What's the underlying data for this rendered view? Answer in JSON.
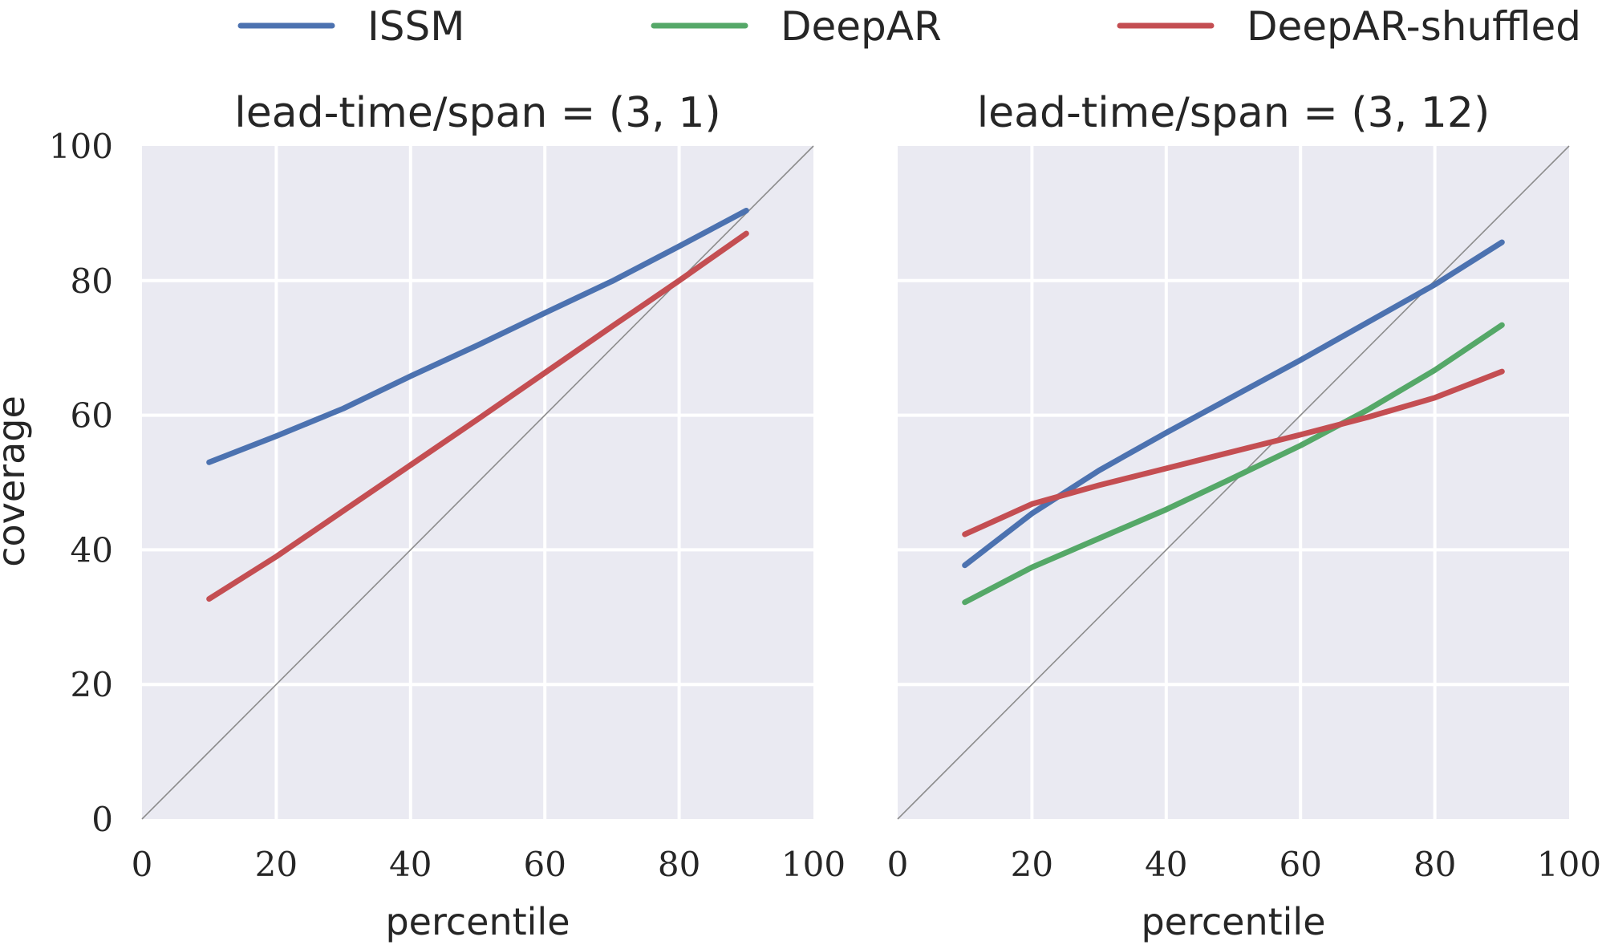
{
  "chart_data": {
    "type": "line",
    "legend": {
      "placement": "top",
      "entries": [
        {
          "label": "ISSM",
          "color": "#4c72b0"
        },
        {
          "label": "DeepAR",
          "color": "#55a868"
        },
        {
          "label": "DeepAR-shuffled",
          "color": "#c44e52"
        }
      ]
    },
    "ylabel": "coverage",
    "grid": true,
    "background_color": "#eaeaf2",
    "reference_line": "y = x",
    "panels": [
      {
        "title": "lead-time/span = (3, 1)",
        "xlabel": "percentile",
        "xlim": [
          0,
          100
        ],
        "ylim": [
          0,
          100
        ],
        "xticks": [
          "0",
          "20",
          "40",
          "60",
          "80",
          "100"
        ],
        "yticks": [
          "0",
          "20",
          "40",
          "60",
          "80",
          "100"
        ],
        "x": [
          10,
          20,
          30,
          40,
          50,
          60,
          70,
          80,
          90
        ],
        "series": [
          {
            "name": "ISSM",
            "values": [
              53,
              56.9,
              61,
              65.8,
              70.4,
              75.2,
              79.9,
              85.1,
              90.4
            ]
          },
          {
            "name": "DeepAR-shuffled",
            "values": [
              32.7,
              39,
              45.8,
              52.6,
              59.4,
              66.3,
              73.2,
              80,
              87
            ]
          }
        ]
      },
      {
        "title": "lead-time/span = (3, 12)",
        "xlabel": "percentile",
        "xlim": [
          0,
          100
        ],
        "ylim": [
          0,
          100
        ],
        "xticks": [
          "0",
          "20",
          "40",
          "60",
          "80",
          "100"
        ],
        "yticks": [],
        "x": [
          10,
          20,
          30,
          40,
          50,
          60,
          70,
          80,
          90
        ],
        "series": [
          {
            "name": "ISSM",
            "values": [
              37.7,
              45.4,
              51.8,
              57.4,
              62.8,
              68.2,
              73.8,
              79.4,
              85.7
            ]
          },
          {
            "name": "DeepAR",
            "values": [
              32.2,
              37.4,
              41.7,
              46,
              50.7,
              55.5,
              60.8,
              66.7,
              73.4
            ]
          },
          {
            "name": "DeepAR-shuffled",
            "values": [
              42.3,
              46.8,
              49.6,
              52.1,
              54.6,
              57.1,
              59.7,
              62.6,
              66.5
            ]
          }
        ]
      }
    ]
  }
}
